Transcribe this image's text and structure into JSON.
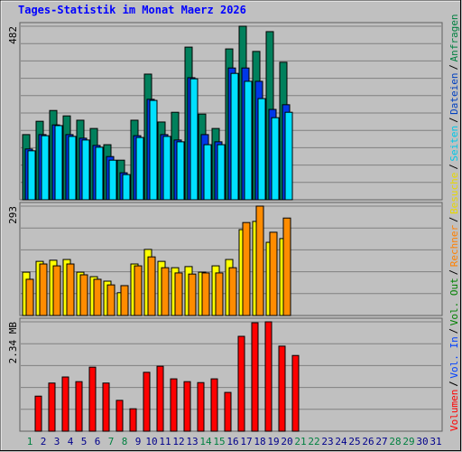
{
  "chart_data": [
    {
      "type": "bar",
      "title": "Tages-Statistik im Monat Maerz 2026",
      "ylim": [
        0,
        482
      ],
      "yticks": [
        482
      ],
      "series": [
        {
          "name": "Anfragen",
          "color": "#00805c",
          "label_color": "#008040",
          "values": [
            181,
            218,
            248,
            233,
            221,
            198,
            153,
            110,
            221,
            349,
            216,
            243,
            424,
            238,
            198,
            419,
            482,
            412,
            467,
            382,
            null,
            null,
            null,
            null,
            null,
            null,
            null,
            null,
            null,
            null,
            null
          ]
        },
        {
          "name": "Dateien",
          "color": "#0038e8",
          "label_color": "#0040c0",
          "values": [
            141,
            181,
            208,
            181,
            171,
            151,
            120,
            75,
            178,
            279,
            181,
            166,
            339,
            181,
            161,
            366,
            366,
            329,
            251,
            264,
            null,
            null,
            null,
            null,
            null,
            null,
            null,
            null,
            null,
            null,
            null
          ]
        },
        {
          "name": "Seiten",
          "color": "#00e0ff",
          "label_color": "#00c8e8",
          "values": [
            136,
            178,
            206,
            176,
            166,
            146,
            110,
            70,
            173,
            276,
            176,
            161,
            336,
            153,
            153,
            351,
            329,
            281,
            228,
            243,
            null,
            null,
            null,
            null,
            null,
            null,
            null,
            null,
            null,
            null,
            null
          ]
        }
      ]
    },
    {
      "type": "bar",
      "ylim": [
        0,
        293
      ],
      "yticks": [
        293
      ],
      "series": [
        {
          "name": "Besuche",
          "color": "#ffff00",
          "label_color": "#e8d800",
          "values": [
            116,
            145,
            148,
            150,
            116,
            104,
            92,
            61,
            138,
            177,
            145,
            128,
            131,
            116,
            133,
            150,
            230,
            252,
            196,
            206,
            null,
            null,
            null,
            null,
            null,
            null,
            null,
            null,
            null,
            null,
            null
          ]
        },
        {
          "name": "Rechner",
          "color": "#ff8c00",
          "label_color": "#ff8000",
          "values": [
            97,
            138,
            133,
            138,
            109,
            97,
            82,
            80,
            133,
            157,
            128,
            114,
            111,
            114,
            114,
            128,
            249,
            293,
            223,
            261,
            null,
            null,
            null,
            null,
            null,
            null,
            null,
            null,
            null,
            null,
            null
          ]
        }
      ]
    },
    {
      "type": "bar",
      "ylim": [
        0,
        2.34
      ],
      "yticks": [
        {
          "value": 2.34,
          "label": "2.34 MB"
        }
      ],
      "categories": [
        "1",
        "2",
        "3",
        "4",
        "5",
        "6",
        "7",
        "8",
        "9",
        "10",
        "11",
        "12",
        "13",
        "14",
        "15",
        "16",
        "17",
        "18",
        "19",
        "20",
        "21",
        "22",
        "23",
        "24",
        "25",
        "26",
        "27",
        "28",
        "29",
        "30",
        "31"
      ],
      "label_colors": [
        "#008040",
        "#00008b",
        "#00008b",
        "#00008b",
        "#00008b",
        "#00008b",
        "#008040",
        "#008040",
        "#00008b",
        "#00008b",
        "#00008b",
        "#00008b",
        "#00008b",
        "#008040",
        "#008040",
        "#00008b",
        "#00008b",
        "#00008b",
        "#00008b",
        "#00008b",
        "#008040",
        "#008040",
        "#00008b",
        "#00008b",
        "#00008b",
        "#00008b",
        "#00008b",
        "#008040",
        "#008040",
        "#00008b",
        "#00008b"
      ],
      "series": [
        {
          "name": "Vol. Out",
          "color": "#00c000",
          "label_color": "#008000",
          "values": [
            null,
            null,
            null,
            null,
            null,
            null,
            null,
            null,
            null,
            null,
            null,
            null,
            null,
            null,
            null,
            null,
            null,
            null,
            null,
            null,
            null,
            null,
            null,
            null,
            null,
            null,
            null,
            null,
            null,
            null,
            null
          ]
        },
        {
          "name": "Vol. In",
          "color": "#0080ff",
          "label_color": "#0040ff",
          "values": [
            null,
            null,
            null,
            null,
            null,
            null,
            null,
            null,
            null,
            null,
            null,
            null,
            null,
            null,
            null,
            null,
            null,
            null,
            null,
            null,
            null,
            null,
            null,
            null,
            null,
            null,
            null,
            null,
            null,
            null,
            null
          ]
        },
        {
          "name": "Volumen",
          "color": "#ff0000",
          "label_color": "#ff0000",
          "values": [
            0.75,
            1.03,
            1.16,
            1.06,
            1.37,
            1.03,
            0.66,
            0.48,
            1.26,
            1.39,
            1.12,
            1.06,
            1.04,
            1.12,
            0.83,
            2.03,
            2.32,
            2.34,
            1.82,
            1.62,
            null,
            null,
            null,
            null,
            null,
            null,
            null,
            null,
            null,
            null,
            null
          ]
        }
      ]
    }
  ]
}
